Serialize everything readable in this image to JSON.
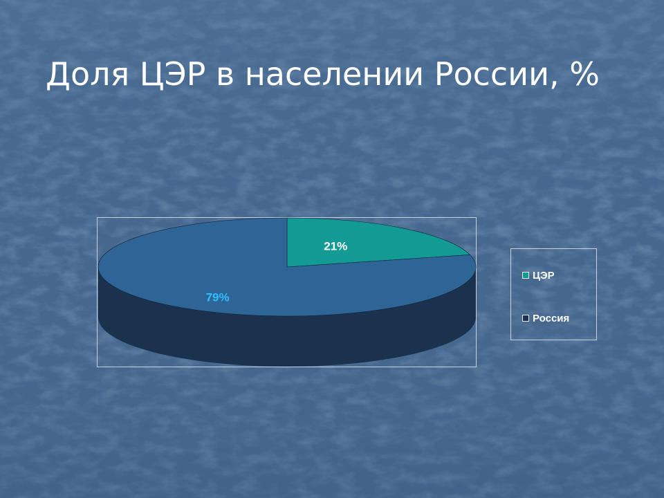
{
  "slide": {
    "title": "Доля ЦЭР в населении России, %"
  },
  "colors": {
    "background": "#46688f",
    "slice_cer": "#139a94",
    "slice_russia": "#2f6496",
    "pie_side": "#1a324e",
    "label_cer": "#ffffff",
    "label_russia": "#2fc0ff"
  },
  "chart_data": {
    "type": "pie",
    "style": "3d",
    "categories": [
      "ЦЭР",
      "Россия"
    ],
    "values": [
      21,
      79
    ],
    "data_labels": [
      "21%",
      "79%"
    ],
    "legend": {
      "position": "right",
      "items": [
        {
          "label": "ЦЭР",
          "color": "#139a94",
          "icon": "legend-swatch"
        },
        {
          "label": "Россия",
          "color": "#1a324e",
          "icon": "legend-swatch"
        }
      ]
    }
  }
}
